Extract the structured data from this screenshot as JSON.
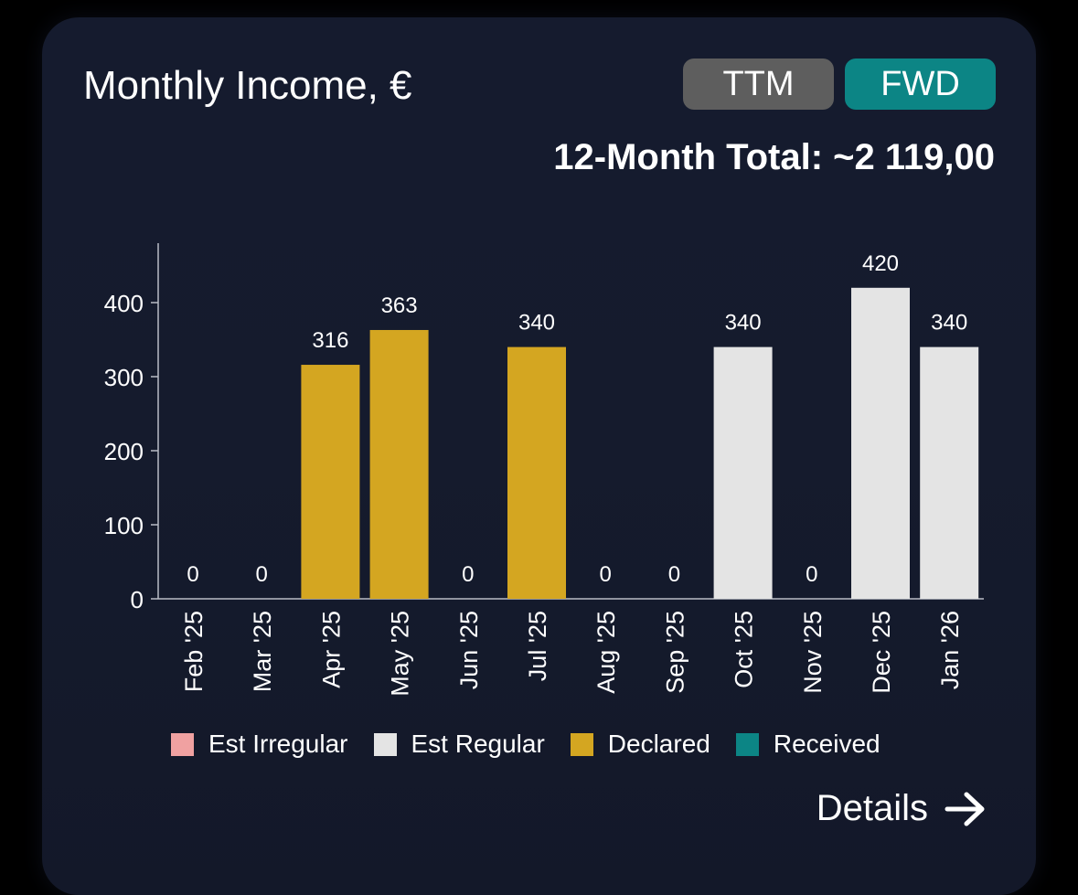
{
  "card": {
    "title": "Monthly Income, €",
    "toggles": [
      {
        "label": "TTM",
        "color": "#5e5e5e"
      },
      {
        "label": "FWD",
        "color": "#0c8585"
      }
    ],
    "total": "12-Month Total: ~2 119,00",
    "details_label": "Details",
    "details_icon": "arrow-right-icon"
  },
  "legend": [
    {
      "label": "Est Irregular",
      "color": "#f0a1a1"
    },
    {
      "label": "Est Regular",
      "color": "#e4e4e4"
    },
    {
      "label": "Declared",
      "color": "#d4a621"
    },
    {
      "label": "Received",
      "color": "#0c8585"
    }
  ],
  "chart_data": {
    "type": "bar",
    "title": "",
    "xlabel": "",
    "ylabel": "",
    "ylim": [
      0,
      480
    ],
    "yticks": [
      0,
      100,
      200,
      300,
      400
    ],
    "grid": false,
    "legend_position": "bottom",
    "categories": [
      "Feb '25",
      "Mar '25",
      "Apr '25",
      "May '25",
      "Jun '25",
      "Jul '25",
      "Aug '25",
      "Sep '25",
      "Oct '25",
      "Nov '25",
      "Dec '25",
      "Jan '26"
    ],
    "values": [
      0,
      0,
      316,
      363,
      0,
      340,
      0,
      0,
      340,
      0,
      420,
      340
    ],
    "value_labels": [
      "0",
      "0",
      "316",
      "363",
      "0",
      "340",
      "0",
      "0",
      "340",
      "0",
      "420",
      "340"
    ],
    "bar_types": [
      "",
      "",
      "Declared",
      "Declared",
      "",
      "Declared",
      "",
      "",
      "Est Regular",
      "",
      "Est Regular",
      "Est Regular"
    ]
  }
}
